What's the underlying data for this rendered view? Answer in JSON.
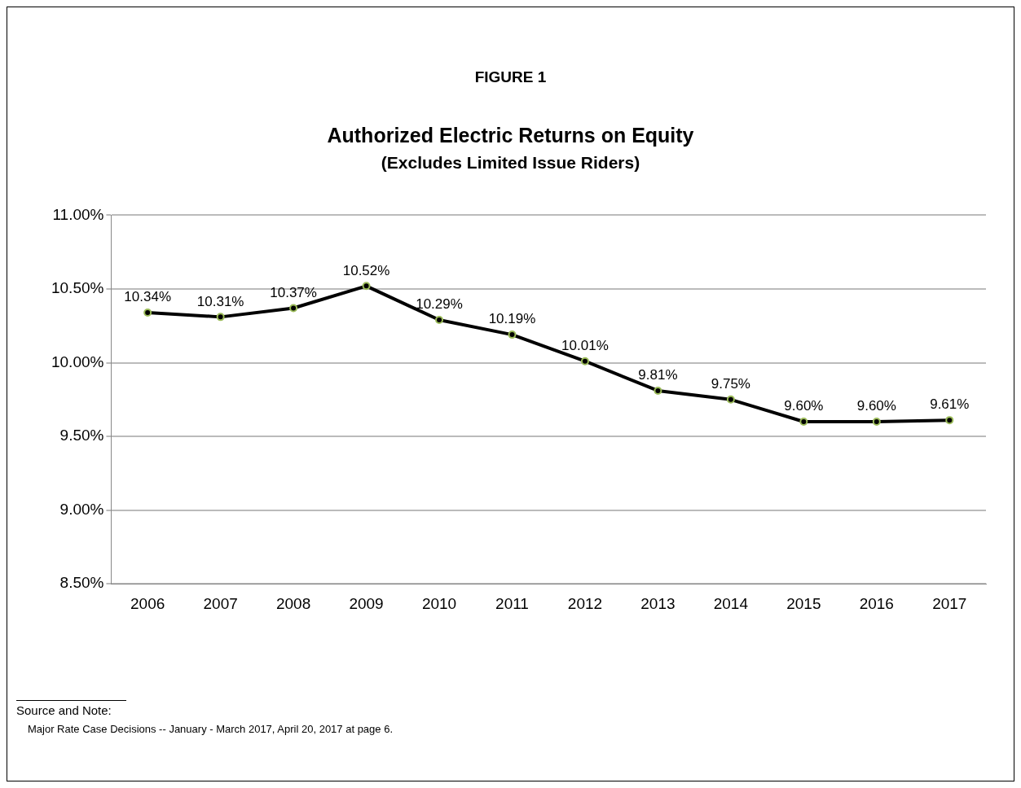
{
  "chart_data": {
    "type": "line",
    "title": "Authorized Electric Returns on Equity",
    "subtitle": "(Excludes Limited Issue Riders)",
    "categories": [
      "2006",
      "2007",
      "2008",
      "2009",
      "2010",
      "2011",
      "2012",
      "2013",
      "2014",
      "2015",
      "2016",
      "2017"
    ],
    "series": [
      {
        "color": "#000000",
        "values": [
          10.34,
          10.31,
          10.37,
          10.52,
          10.29,
          10.19,
          10.01,
          9.81,
          9.75,
          9.6,
          9.6,
          9.61
        ],
        "value_labels": [
          "10.34%",
          "10.31%",
          "10.37%",
          "10.52%",
          "10.29%",
          "10.19%",
          "10.01%",
          "9.81%",
          "9.75%",
          "9.60%",
          "9.60%",
          "9.61%"
        ]
      }
    ],
    "ylim": [
      8.5,
      11
    ],
    "yticks": [
      {
        "value": 8.5,
        "label": "8.50%"
      },
      {
        "value": 9,
        "label": "9.00%"
      },
      {
        "value": 9.5,
        "label": "9.50%"
      },
      {
        "value": 10,
        "label": "10.00%"
      },
      {
        "value": 10.5,
        "label": "10.50%"
      },
      {
        "value": 11,
        "label": "11.00%"
      }
    ],
    "grid": "y",
    "legend": false,
    "marker": "circle",
    "line_style": "solid",
    "annotations": [
      "FIGURE 1",
      "Source and Note:",
      "Major Rate Case Decisions -- January - March 2017, April 20, 2017 at page 6."
    ]
  }
}
